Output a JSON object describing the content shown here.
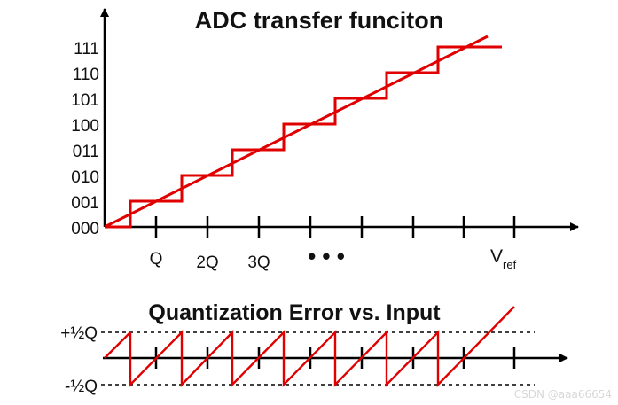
{
  "top_plot": {
    "title": "ADC transfer funciton",
    "y_codes": [
      "000",
      "001",
      "010",
      "011",
      "100",
      "101",
      "110",
      "111"
    ],
    "x_labels": [
      "Q",
      "2Q",
      "3Q"
    ],
    "x_ellipsis": "• • •",
    "x_ref_label": "V",
    "x_ref_subscript": "ref",
    "colors": {
      "axis": "#000000",
      "curve": "#e00000"
    }
  },
  "bottom_plot": {
    "title": "Quantization Error vs. Input",
    "upper_bound_label": "+½Q",
    "lower_bound_label": "-½Q",
    "colors": {
      "axis": "#000000",
      "curve": "#e00000",
      "bounds": "#000000"
    }
  },
  "watermark": "CSDN @aaa66654"
}
